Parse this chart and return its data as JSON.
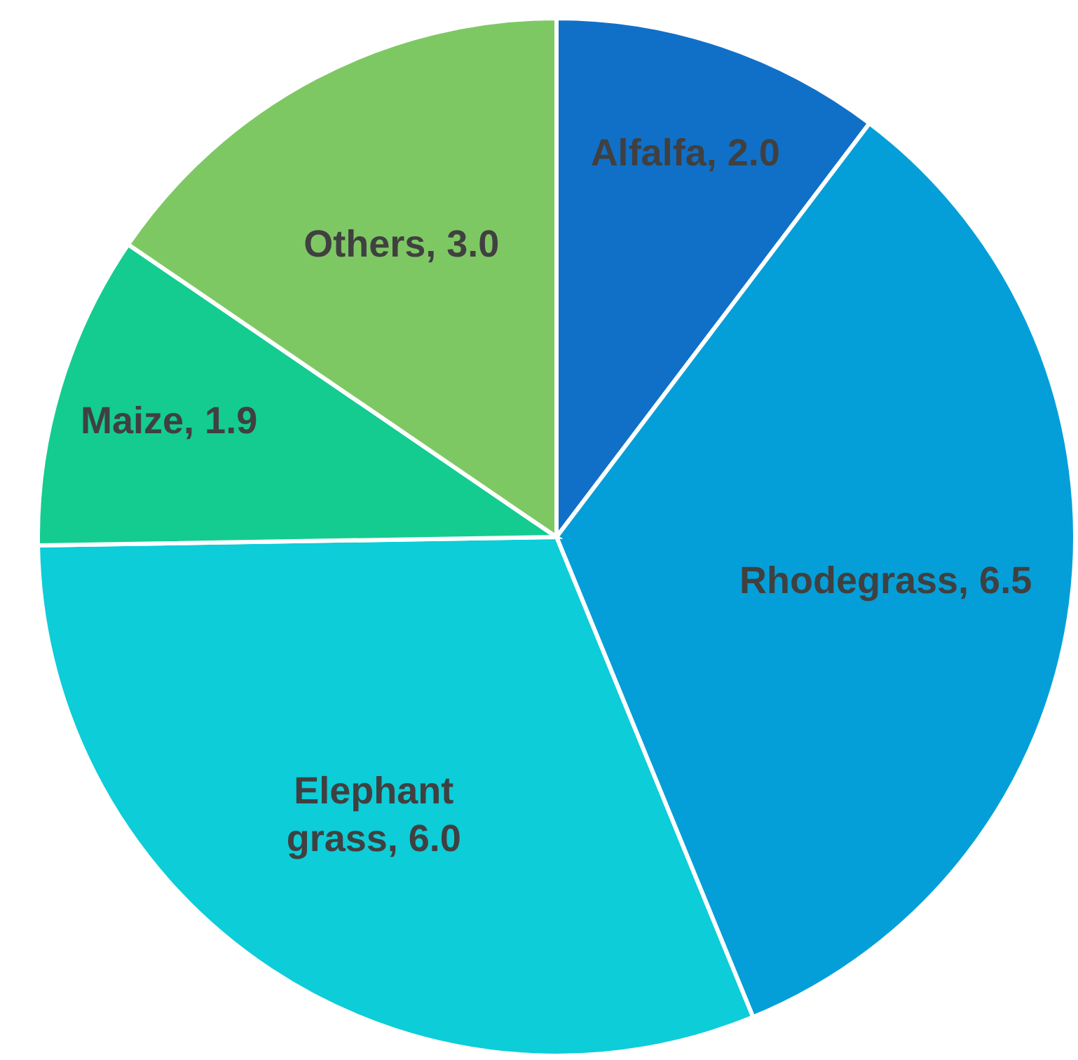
{
  "chart_data": {
    "type": "pie",
    "categories": [
      "Alfalfa",
      "Rhodegrass",
      "Elephant grass",
      "Maize",
      "Others"
    ],
    "values": [
      2.0,
      6.5,
      6.0,
      1.9,
      3.0
    ],
    "value_labels": [
      "2.0",
      "6.5",
      "6.0",
      "1.9",
      "3.0"
    ],
    "colors": [
      "#1070c8",
      "#049fd8",
      "#0ccdd8",
      "#14cc90",
      "#7ec864"
    ]
  }
}
